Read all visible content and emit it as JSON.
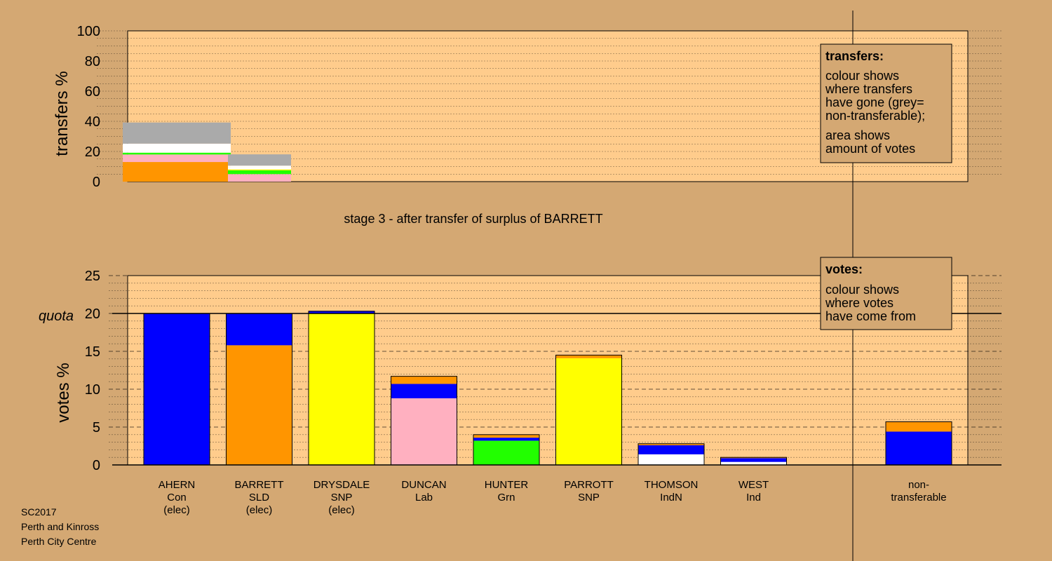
{
  "stage_title": "stage 3 - after transfer of surplus of BARRETT",
  "footer": [
    "SC2017",
    "Perth and Kinross",
    "Perth City Centre"
  ],
  "colors": {
    "background": "#d4a873",
    "plot_bg": "#ffcc8c",
    "Con": "#0000ff",
    "SLD": "#ff9500",
    "SNP": "#ffff00",
    "Lab": "#ffb0c0",
    "Grn": "#22ff00",
    "Ind": "#ffffff",
    "nontransferable": "#aaaaaa"
  },
  "legend_transfers": {
    "title": "transfers:",
    "lines1": [
      "colour shows",
      "where transfers",
      "have gone (grey=",
      "non-transferable);"
    ],
    "lines2": [
      "area shows",
      "amount of votes"
    ]
  },
  "legend_votes": {
    "title": "votes:",
    "lines": [
      "colour shows",
      "where votes",
      "have come from"
    ]
  },
  "chart_data": [
    {
      "type": "bar",
      "name": "transfers",
      "ylabel": "transfers %",
      "ylim": [
        0,
        100
      ],
      "yticks": [
        0,
        20,
        40,
        60,
        80,
        100
      ],
      "note": "stacked transfer blocks; first block = transfer from AHERN surplus (stage 2), second = transfer from BARRETT surplus (stage 3)",
      "blocks": [
        {
          "segments": [
            {
              "party": "SLD",
              "value": 13
            },
            {
              "party": "Lab",
              "value": 5
            },
            {
              "party": "Grn",
              "value": 1.2
            },
            {
              "party": "Ind",
              "value": 1
            },
            {
              "party": "Ind",
              "value": 5
            },
            {
              "party": "nontransferable",
              "value": 14
            }
          ]
        },
        {
          "segments": [
            {
              "party": "Lab",
              "value": 5
            },
            {
              "party": "Grn",
              "value": 2.5
            },
            {
              "party": "SNP",
              "value": 0.6
            },
            {
              "party": "Ind",
              "value": 1.5
            },
            {
              "party": "Ind",
              "value": 1
            },
            {
              "party": "nontransferable",
              "value": 7.5
            }
          ]
        }
      ]
    },
    {
      "type": "bar",
      "name": "votes",
      "ylabel": "votes %",
      "ylim": [
        0,
        25
      ],
      "yticks": [
        0,
        5,
        10,
        15,
        20,
        25
      ],
      "quota": 20,
      "quota_label": "quota",
      "candidates": [
        {
          "name": "AHERN",
          "party": "Con",
          "status": "(elec)",
          "segments": [
            {
              "party": "Con",
              "value": 20
            }
          ]
        },
        {
          "name": "BARRETT",
          "party": "SLD",
          "status": "(elec)",
          "segments": [
            {
              "party": "SLD",
              "value": 15.8
            },
            {
              "party": "Con",
              "value": 4.2
            }
          ]
        },
        {
          "name": "DRYSDALE",
          "party": "SNP",
          "status": "(elec)",
          "segments": [
            {
              "party": "SNP",
              "value": 20.0
            },
            {
              "party": "Con",
              "value": 0.3
            }
          ]
        },
        {
          "name": "DUNCAN",
          "party": "Lab",
          "status": "",
          "segments": [
            {
              "party": "Lab",
              "value": 8.8
            },
            {
              "party": "Con",
              "value": 1.9
            },
            {
              "party": "SLD",
              "value": 1.0
            }
          ]
        },
        {
          "name": "HUNTER",
          "party": "Grn",
          "status": "",
          "segments": [
            {
              "party": "Grn",
              "value": 3.2
            },
            {
              "party": "Con",
              "value": 0.4
            },
            {
              "party": "SLD",
              "value": 0.4
            }
          ]
        },
        {
          "name": "PARROTT",
          "party": "SNP",
          "status": "",
          "segments": [
            {
              "party": "SNP",
              "value": 14.1
            },
            {
              "party": "SLD",
              "value": 0.4
            }
          ]
        },
        {
          "name": "THOMSON",
          "party": "IndN",
          "status": "",
          "segments": [
            {
              "party": "Ind",
              "value": 1.4
            },
            {
              "party": "Con",
              "value": 1.2
            },
            {
              "party": "SLD",
              "value": 0.2
            }
          ]
        },
        {
          "name": "WEST",
          "party": "Ind",
          "status": "",
          "segments": [
            {
              "party": "Ind",
              "value": 0.4
            },
            {
              "party": "Con",
              "value": 0.5
            },
            {
              "party": "SLD",
              "value": 0.1
            }
          ]
        }
      ],
      "nontransferable": {
        "label_lines": [
          "non-",
          "transferable"
        ],
        "segments": [
          {
            "party": "Con",
            "value": 4.4
          },
          {
            "party": "SLD",
            "value": 1.3
          }
        ]
      }
    }
  ]
}
